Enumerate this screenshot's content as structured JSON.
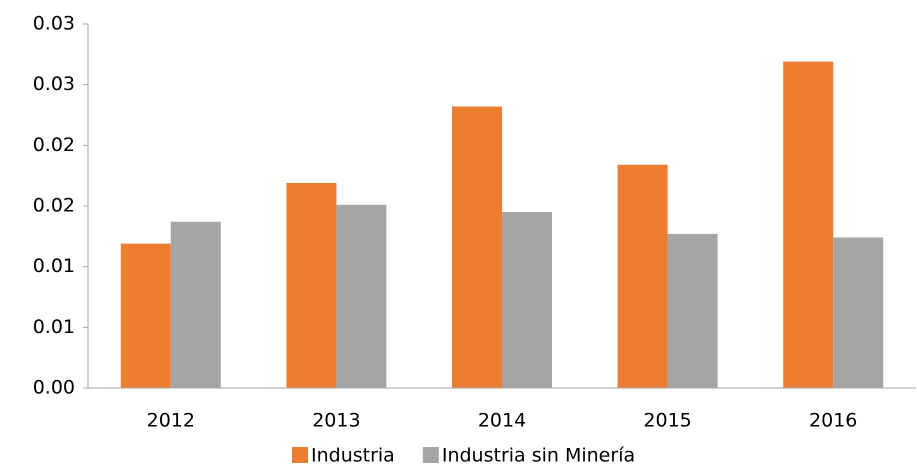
{
  "chart_data": {
    "type": "bar",
    "categories": [
      "2012",
      "2013",
      "2014",
      "2015",
      "2016"
    ],
    "series": [
      {
        "name": "Industria",
        "color": "#ed7d31",
        "values": [
          0.0119,
          0.0169,
          0.0232,
          0.0184,
          0.0269
        ]
      },
      {
        "name": "Industria sin Minería",
        "color": "#a5a5a5",
        "values": [
          0.0137,
          0.0151,
          0.0145,
          0.0127,
          0.0124
        ]
      }
    ],
    "ylim": [
      0,
      0.03
    ],
    "yticks": [
      {
        "value": 0,
        "label": "0.00"
      },
      {
        "value": 0.005,
        "label": "0.01"
      },
      {
        "value": 0.01,
        "label": "0.01"
      },
      {
        "value": 0.015,
        "label": "0.02"
      },
      {
        "value": 0.02,
        "label": "0.02"
      },
      {
        "value": 0.025,
        "label": "0.03"
      },
      {
        "value": 0.03,
        "label": "0.03"
      }
    ],
    "legend": "bottom",
    "grid": false
  }
}
